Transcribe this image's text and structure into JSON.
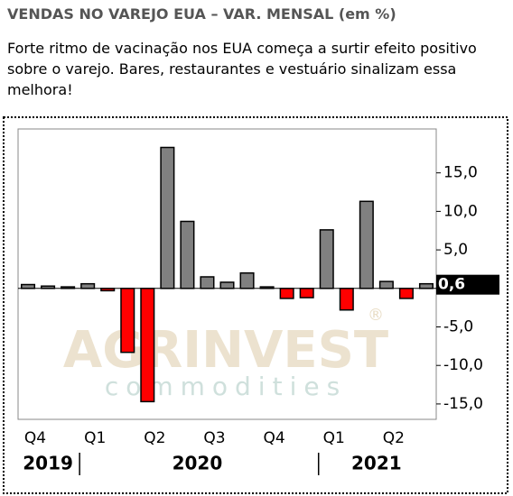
{
  "header": {
    "title": "VENDAS NO VAREJO EUA – VAR. MENSAL (em %)",
    "text": "Forte ritmo de vacinação nos EUA começa a surtir efeito positivo sobre o varejo. Bares, restaurantes e vestuário sinalizam essa melhora!"
  },
  "chart_data": {
    "type": "bar",
    "categories": [
      "Q4",
      null,
      null,
      "Q1",
      null,
      null,
      "Q2",
      null,
      null,
      "Q3",
      null,
      null,
      "Q4",
      null,
      null,
      "Q1",
      null,
      null,
      "Q2",
      null,
      null
    ],
    "years": [
      "2019",
      "2020",
      "2021"
    ],
    "values": [
      0.5,
      0.3,
      0.2,
      0.6,
      -0.3,
      -8.3,
      -14.7,
      18.3,
      8.7,
      1.5,
      0.8,
      2.0,
      0.2,
      -1.3,
      -1.2,
      7.6,
      -2.8,
      11.3,
      0.9,
      -1.3,
      0.6
    ],
    "value_labels": [
      null,
      null,
      null,
      null,
      null,
      null,
      null,
      null,
      null,
      null,
      null,
      null,
      null,
      null,
      null,
      null,
      null,
      null,
      null,
      null,
      "0,6"
    ],
    "color_positive": "#808080",
    "color_negative": "#ff0000",
    "ylim": [
      -17,
      20.7
    ],
    "yticks": [
      {
        "value": 15,
        "label": "15,0"
      },
      {
        "value": 10,
        "label": "10,0"
      },
      {
        "value": 5,
        "label": "5,0"
      },
      {
        "value": -5,
        "label": "-5,0"
      },
      {
        "value": -10,
        "label": "-10,0"
      },
      {
        "value": -15,
        "label": "-15,0"
      }
    ],
    "watermark": [
      "AGRINVEST",
      "commodities",
      "®"
    ]
  }
}
